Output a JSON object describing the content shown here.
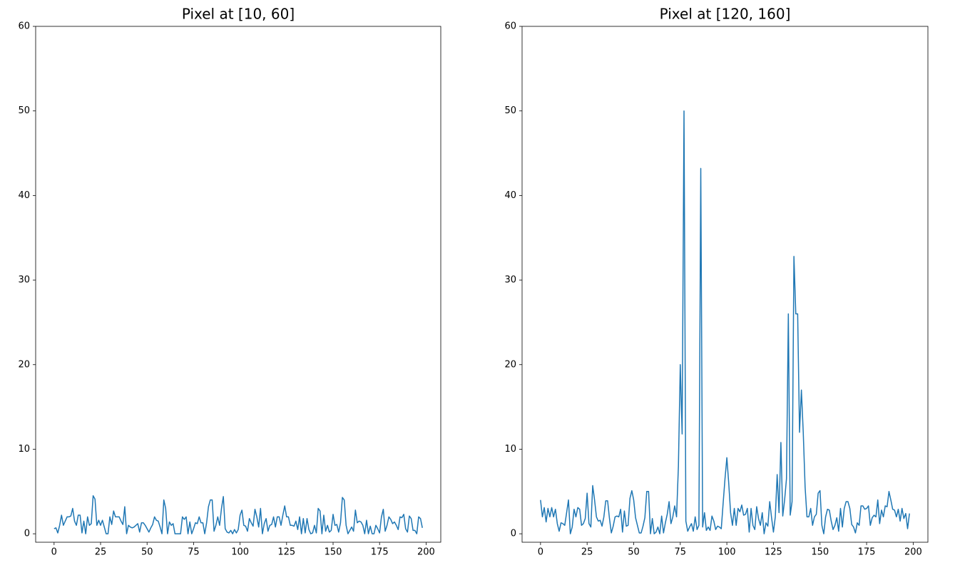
{
  "chart_data": [
    {
      "type": "line",
      "title": "Pixel at [10, 60]",
      "color": "#1f77b4",
      "xlim": [
        -9.9,
        207.9
      ],
      "ylim": [
        -1,
        60
      ],
      "xticks": [
        0,
        25,
        50,
        75,
        100,
        125,
        150,
        175,
        200
      ],
      "yticks": [
        0,
        10,
        20,
        30,
        40,
        50,
        60
      ],
      "x": [
        0,
        1,
        2,
        3,
        4,
        5,
        6,
        7,
        8,
        9,
        10,
        11,
        12,
        13,
        14,
        15,
        16,
        17,
        18,
        19,
        20,
        21,
        22,
        23,
        24,
        25,
        26,
        27,
        28,
        29,
        30,
        31,
        32,
        33,
        34,
        35,
        36,
        37,
        38,
        39,
        40,
        41,
        42,
        43,
        44,
        45,
        46,
        47,
        48,
        49,
        50,
        51,
        52,
        53,
        54,
        55,
        56,
        57,
        58,
        59,
        60,
        61,
        62,
        63,
        64,
        65,
        66,
        67,
        68,
        69,
        70,
        71,
        72,
        73,
        74,
        75,
        76,
        77,
        78,
        79,
        80,
        81,
        82,
        83,
        84,
        85,
        86,
        87,
        88,
        89,
        90,
        91,
        92,
        93,
        94,
        95,
        96,
        97,
        98,
        99,
        100,
        101,
        102,
        103,
        104,
        105,
        106,
        107,
        108,
        109,
        110,
        111,
        112,
        113,
        114,
        115,
        116,
        117,
        118,
        119,
        120,
        121,
        122,
        123,
        124,
        125,
        126,
        127,
        128,
        129,
        130,
        131,
        132,
        133,
        134,
        135,
        136,
        137,
        138,
        139,
        140,
        141,
        142,
        143,
        144,
        145,
        146,
        147,
        148,
        149,
        150,
        151,
        152,
        153,
        154,
        155,
        156,
        157,
        158,
        159,
        160,
        161,
        162,
        163,
        164,
        165,
        166,
        167,
        168,
        169,
        170,
        171,
        172,
        173,
        174,
        175,
        176,
        177,
        178,
        179,
        180,
        181,
        182,
        183,
        184,
        185,
        186,
        187,
        188,
        189,
        190,
        191,
        192,
        193,
        194,
        195,
        196,
        197,
        198
      ],
      "values": [
        0.6,
        0.7,
        0.1,
        1,
        2.2,
        1,
        1.5,
        2,
        2,
        2.1,
        3,
        1.5,
        1,
        2.2,
        2.2,
        0.1,
        1.5,
        0,
        2,
        1,
        1.2,
        4.5,
        4.1,
        1,
        1.6,
        1,
        1.6,
        0.8,
        0,
        0,
        2,
        1.1,
        2.7,
        2,
        2,
        2,
        1.5,
        1.1,
        3.2,
        0,
        1,
        0.8,
        0.7,
        0.8,
        1,
        1.2,
        0.2,
        1.3,
        1.3,
        1,
        0.6,
        0.2,
        0.7,
        1.1,
        2,
        1.6,
        1.5,
        0.8,
        0,
        4,
        3,
        0,
        1.4,
        1,
        1.2,
        0,
        0,
        0,
        0,
        2,
        1.7,
        2,
        0,
        1.4,
        0,
        0.6,
        1.3,
        1.2,
        2,
        1.3,
        1.3,
        0,
        1.3,
        3.2,
        4,
        4,
        0.3,
        1,
        2,
        1,
        3,
        4.4,
        0.6,
        0.2,
        0.1,
        0.4,
        0,
        0.5,
        0.1,
        0.5,
        2.2,
        2.8,
        1,
        0.9,
        0.3,
        1.8,
        1.3,
        0.9,
        2.9,
        2,
        0.8,
        3,
        0,
        1.2,
        1.8,
        0.3,
        1,
        1.1,
        2,
        0.8,
        2,
        2,
        1,
        2.2,
        3.3,
        2,
        2,
        1,
        1,
        0.9,
        1.5,
        0.5,
        2,
        0,
        1.8,
        0.1,
        1.8,
        0.5,
        0,
        0.1,
        1,
        0.1,
        3,
        2.7,
        0,
        2.2,
        0.3,
        1,
        0.2,
        0.4,
        2.3,
        1,
        1.1,
        0.2,
        1.3,
        4.3,
        4,
        1,
        0,
        0.4,
        0.8,
        0.3,
        2.8,
        1.3,
        1.5,
        1.4,
        1,
        0,
        1.6,
        0,
        0.9,
        0,
        0,
        1,
        0.6,
        0.1,
        2,
        2.9,
        0.3,
        1,
        2,
        1.7,
        1.2,
        1.4,
        1,
        0.5,
        2,
        1.9,
        2.3,
        0.6,
        0.2,
        2.1,
        1.8,
        0.4,
        0.4,
        0,
        2,
        1.8,
        0.7
      ]
    },
    {
      "type": "line",
      "title": "Pixel at [120, 160]",
      "color": "#1f77b4",
      "xlim": [
        -9.9,
        207.9
      ],
      "ylim": [
        -1,
        60
      ],
      "xticks": [
        0,
        25,
        50,
        75,
        100,
        125,
        150,
        175,
        200
      ],
      "yticks": [
        0,
        10,
        20,
        30,
        40,
        50,
        60
      ],
      "x": [
        0,
        1,
        2,
        3,
        4,
        5,
        6,
        7,
        8,
        9,
        10,
        11,
        12,
        13,
        14,
        15,
        16,
        17,
        18,
        19,
        20,
        21,
        22,
        23,
        24,
        25,
        26,
        27,
        28,
        29,
        30,
        31,
        32,
        33,
        34,
        35,
        36,
        37,
        38,
        39,
        40,
        41,
        42,
        43,
        44,
        45,
        46,
        47,
        48,
        49,
        50,
        51,
        52,
        53,
        54,
        55,
        56,
        57,
        58,
        59,
        60,
        61,
        62,
        63,
        64,
        65,
        66,
        67,
        68,
        69,
        70,
        71,
        72,
        73,
        74,
        75,
        76,
        77,
        78,
        79,
        80,
        81,
        82,
        83,
        84,
        85,
        86,
        87,
        88,
        89,
        90,
        91,
        92,
        93,
        94,
        95,
        96,
        97,
        98,
        99,
        100,
        101,
        102,
        103,
        104,
        105,
        106,
        107,
        108,
        109,
        110,
        111,
        112,
        113,
        114,
        115,
        116,
        117,
        118,
        119,
        120,
        121,
        122,
        123,
        124,
        125,
        126,
        127,
        128,
        129,
        130,
        131,
        132,
        133,
        134,
        135,
        136,
        137,
        138,
        139,
        140,
        141,
        142,
        143,
        144,
        145,
        146,
        147,
        148,
        149,
        150,
        151,
        152,
        153,
        154,
        155,
        156,
        157,
        158,
        159,
        160,
        161,
        162,
        163,
        164,
        165,
        166,
        167,
        168,
        169,
        170,
        171,
        172,
        173,
        174,
        175,
        176,
        177,
        178,
        179,
        180,
        181,
        182,
        183,
        184,
        185,
        186,
        187,
        188,
        189,
        190,
        191,
        192,
        193,
        194,
        195,
        196,
        197,
        198
      ],
      "values": [
        4,
        2,
        3.1,
        1.4,
        3,
        2,
        3.1,
        2,
        2.9,
        1.2,
        0.3,
        1.3,
        1.2,
        1,
        2.5,
        4,
        0,
        0.8,
        2.9,
        2,
        3.1,
        2.9,
        1,
        1.2,
        1.8,
        4.8,
        1.2,
        0.8,
        5.7,
        4,
        2,
        1.5,
        1.6,
        0.9,
        2,
        3.9,
        3.9,
        1.8,
        0.1,
        0.9,
        2,
        2.1,
        2,
        2.9,
        0.2,
        2.7,
        0.9,
        1,
        4.2,
        5.1,
        4,
        1.9,
        1,
        0.1,
        0.1,
        0.9,
        1.9,
        5,
        5,
        0,
        1.8,
        0,
        0.2,
        0.8,
        0,
        2.1,
        0.1,
        1.3,
        2.3,
        3.8,
        1.2,
        2,
        3.3,
        2,
        8,
        20,
        11.8,
        50,
        1.5,
        0.3,
        0.8,
        1.2,
        0.3,
        2,
        0.5,
        1,
        43.2,
        0.8,
        2.5,
        0.4,
        0.8,
        0.4,
        2.1,
        1.5,
        0.5,
        0.9,
        0.8,
        0.6,
        3.6,
        6.5,
        9,
        6,
        2.5,
        1,
        3,
        1,
        3,
        2.6,
        3.4,
        2.2,
        2.3,
        3,
        0.2,
        3,
        1,
        0.5,
        3.2,
        1.8,
        1,
        2.5,
        0,
        1.3,
        0.9,
        3.8,
        1.9,
        0.2,
        2,
        7,
        2.5,
        10.8,
        2.1,
        4,
        6.5,
        26,
        2.2,
        3.8,
        32.8,
        26,
        26,
        12,
        17,
        12,
        5.5,
        2,
        2,
        3,
        1,
        2,
        2.3,
        4.8,
        5.1,
        1,
        0,
        2,
        2.9,
        2.8,
        1.5,
        0.5,
        1,
        1.9,
        0.3,
        3,
        0.8,
        3,
        3.8,
        3.8,
        3,
        1.1,
        0.8,
        0.1,
        1.3,
        1,
        3.3,
        3.3,
        2.9,
        3,
        3.3,
        1,
        1.9,
        2.2,
        2,
        4,
        1.2,
        2.8,
        2,
        3.3,
        3.2,
        5,
        4,
        2.9,
        2.8,
        2,
        2.9,
        1.5,
        3,
        1.8,
        2.4,
        0.6,
        2.4
      ]
    }
  ]
}
